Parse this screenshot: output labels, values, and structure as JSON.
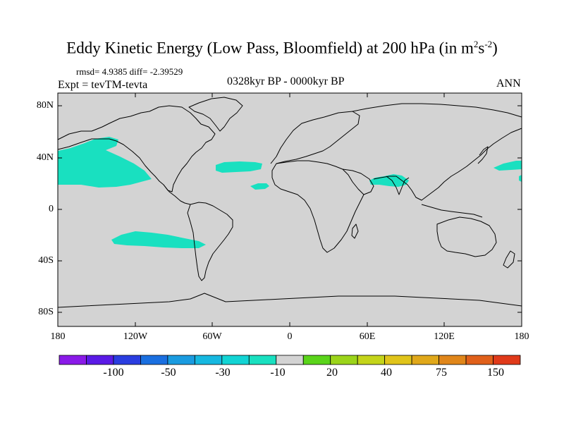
{
  "title": "Eddy Kinetic Energy (Low Pass, Bloomfield) at 200 hPa (in m",
  "title_sup1": "2",
  "title_mid": "s",
  "title_sup2": "-2",
  "title_end": ")",
  "stats_text": "rmsd= 4.9385 diff= -2.39529",
  "expt_text": "Expt = tevTM-tevta",
  "period_text": "0328kyr BP - 0000kyr BP",
  "season_text": "ANN",
  "map": {
    "land_color": "#d3d3d3",
    "anomaly_color": "#19e0c0",
    "lat_ticks": [
      "80N",
      "40N",
      "0",
      "40S",
      "80S"
    ],
    "lon_ticks": [
      "180",
      "120W",
      "60W",
      "0",
      "60E",
      "120E",
      "180"
    ]
  },
  "colorbar": {
    "colors": [
      "#8a1ae8",
      "#5a1ae6",
      "#2a3de0",
      "#1a6fe0",
      "#1a9be0",
      "#16b8e0",
      "#12d4d4",
      "#19e0c0",
      "#d3d3d3",
      "#5ad41a",
      "#9bd41a",
      "#c4d41a",
      "#e0c41a",
      "#e0a81a",
      "#e0861a",
      "#e0601a",
      "#e03a1a"
    ],
    "labels": [
      "-100",
      "-50",
      "-30",
      "-10",
      "20",
      "40",
      "75",
      "150"
    ]
  }
}
